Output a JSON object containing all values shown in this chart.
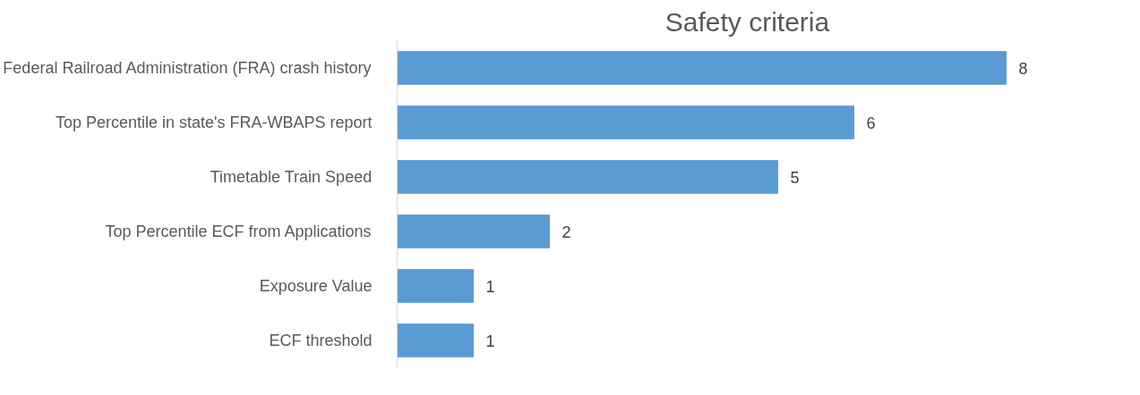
{
  "chart_data": {
    "type": "bar",
    "orientation": "horizontal",
    "title": "Safety criteria",
    "categories": [
      "Federal Railroad Administration (FRA) crash history",
      "Top Percentile in state's FRA-WBAPS report",
      "Timetable Train Speed",
      "Top Percentile ECF from Applications",
      "Exposure Value",
      "ECF threshold"
    ],
    "values": [
      8,
      6,
      5,
      2,
      1,
      1
    ],
    "color": "#5b9bd5",
    "data_labels": true,
    "tick_labels": "y"
  }
}
